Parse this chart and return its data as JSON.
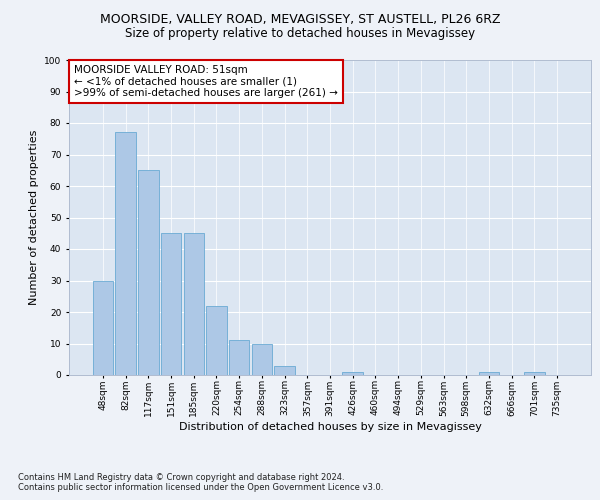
{
  "title_line1": "MOORSIDE, VALLEY ROAD, MEVAGISSEY, ST AUSTELL, PL26 6RZ",
  "title_line2": "Size of property relative to detached houses in Mevagissey",
  "xlabel": "Distribution of detached houses by size in Mevagissey",
  "ylabel": "Number of detached properties",
  "categories": [
    "48sqm",
    "82sqm",
    "117sqm",
    "151sqm",
    "185sqm",
    "220sqm",
    "254sqm",
    "288sqm",
    "323sqm",
    "357sqm",
    "391sqm",
    "426sqm",
    "460sqm",
    "494sqm",
    "529sqm",
    "563sqm",
    "598sqm",
    "632sqm",
    "666sqm",
    "701sqm",
    "735sqm"
  ],
  "values": [
    30,
    77,
    65,
    45,
    45,
    22,
    11,
    10,
    3,
    0,
    0,
    1,
    0,
    0,
    0,
    0,
    0,
    1,
    0,
    1,
    0
  ],
  "bar_color": "#adc8e6",
  "bar_edge_color": "#6aaad4",
  "annotation_text": "MOORSIDE VALLEY ROAD: 51sqm\n← <1% of detached houses are smaller (1)\n>99% of semi-detached houses are larger (261) →",
  "annotation_box_color": "#ffffff",
  "annotation_box_edge": "#cc0000",
  "ylim": [
    0,
    100
  ],
  "yticks": [
    0,
    10,
    20,
    30,
    40,
    50,
    60,
    70,
    80,
    90,
    100
  ],
  "background_color": "#eef2f8",
  "plot_bg_color": "#dce6f2",
  "grid_color": "#ffffff",
  "footnote": "Contains HM Land Registry data © Crown copyright and database right 2024.\nContains public sector information licensed under the Open Government Licence v3.0.",
  "title_fontsize": 9,
  "subtitle_fontsize": 8.5,
  "ylabel_fontsize": 8,
  "xlabel_fontsize": 8,
  "tick_fontsize": 6.5,
  "annotation_fontsize": 7.5,
  "footnote_fontsize": 6
}
